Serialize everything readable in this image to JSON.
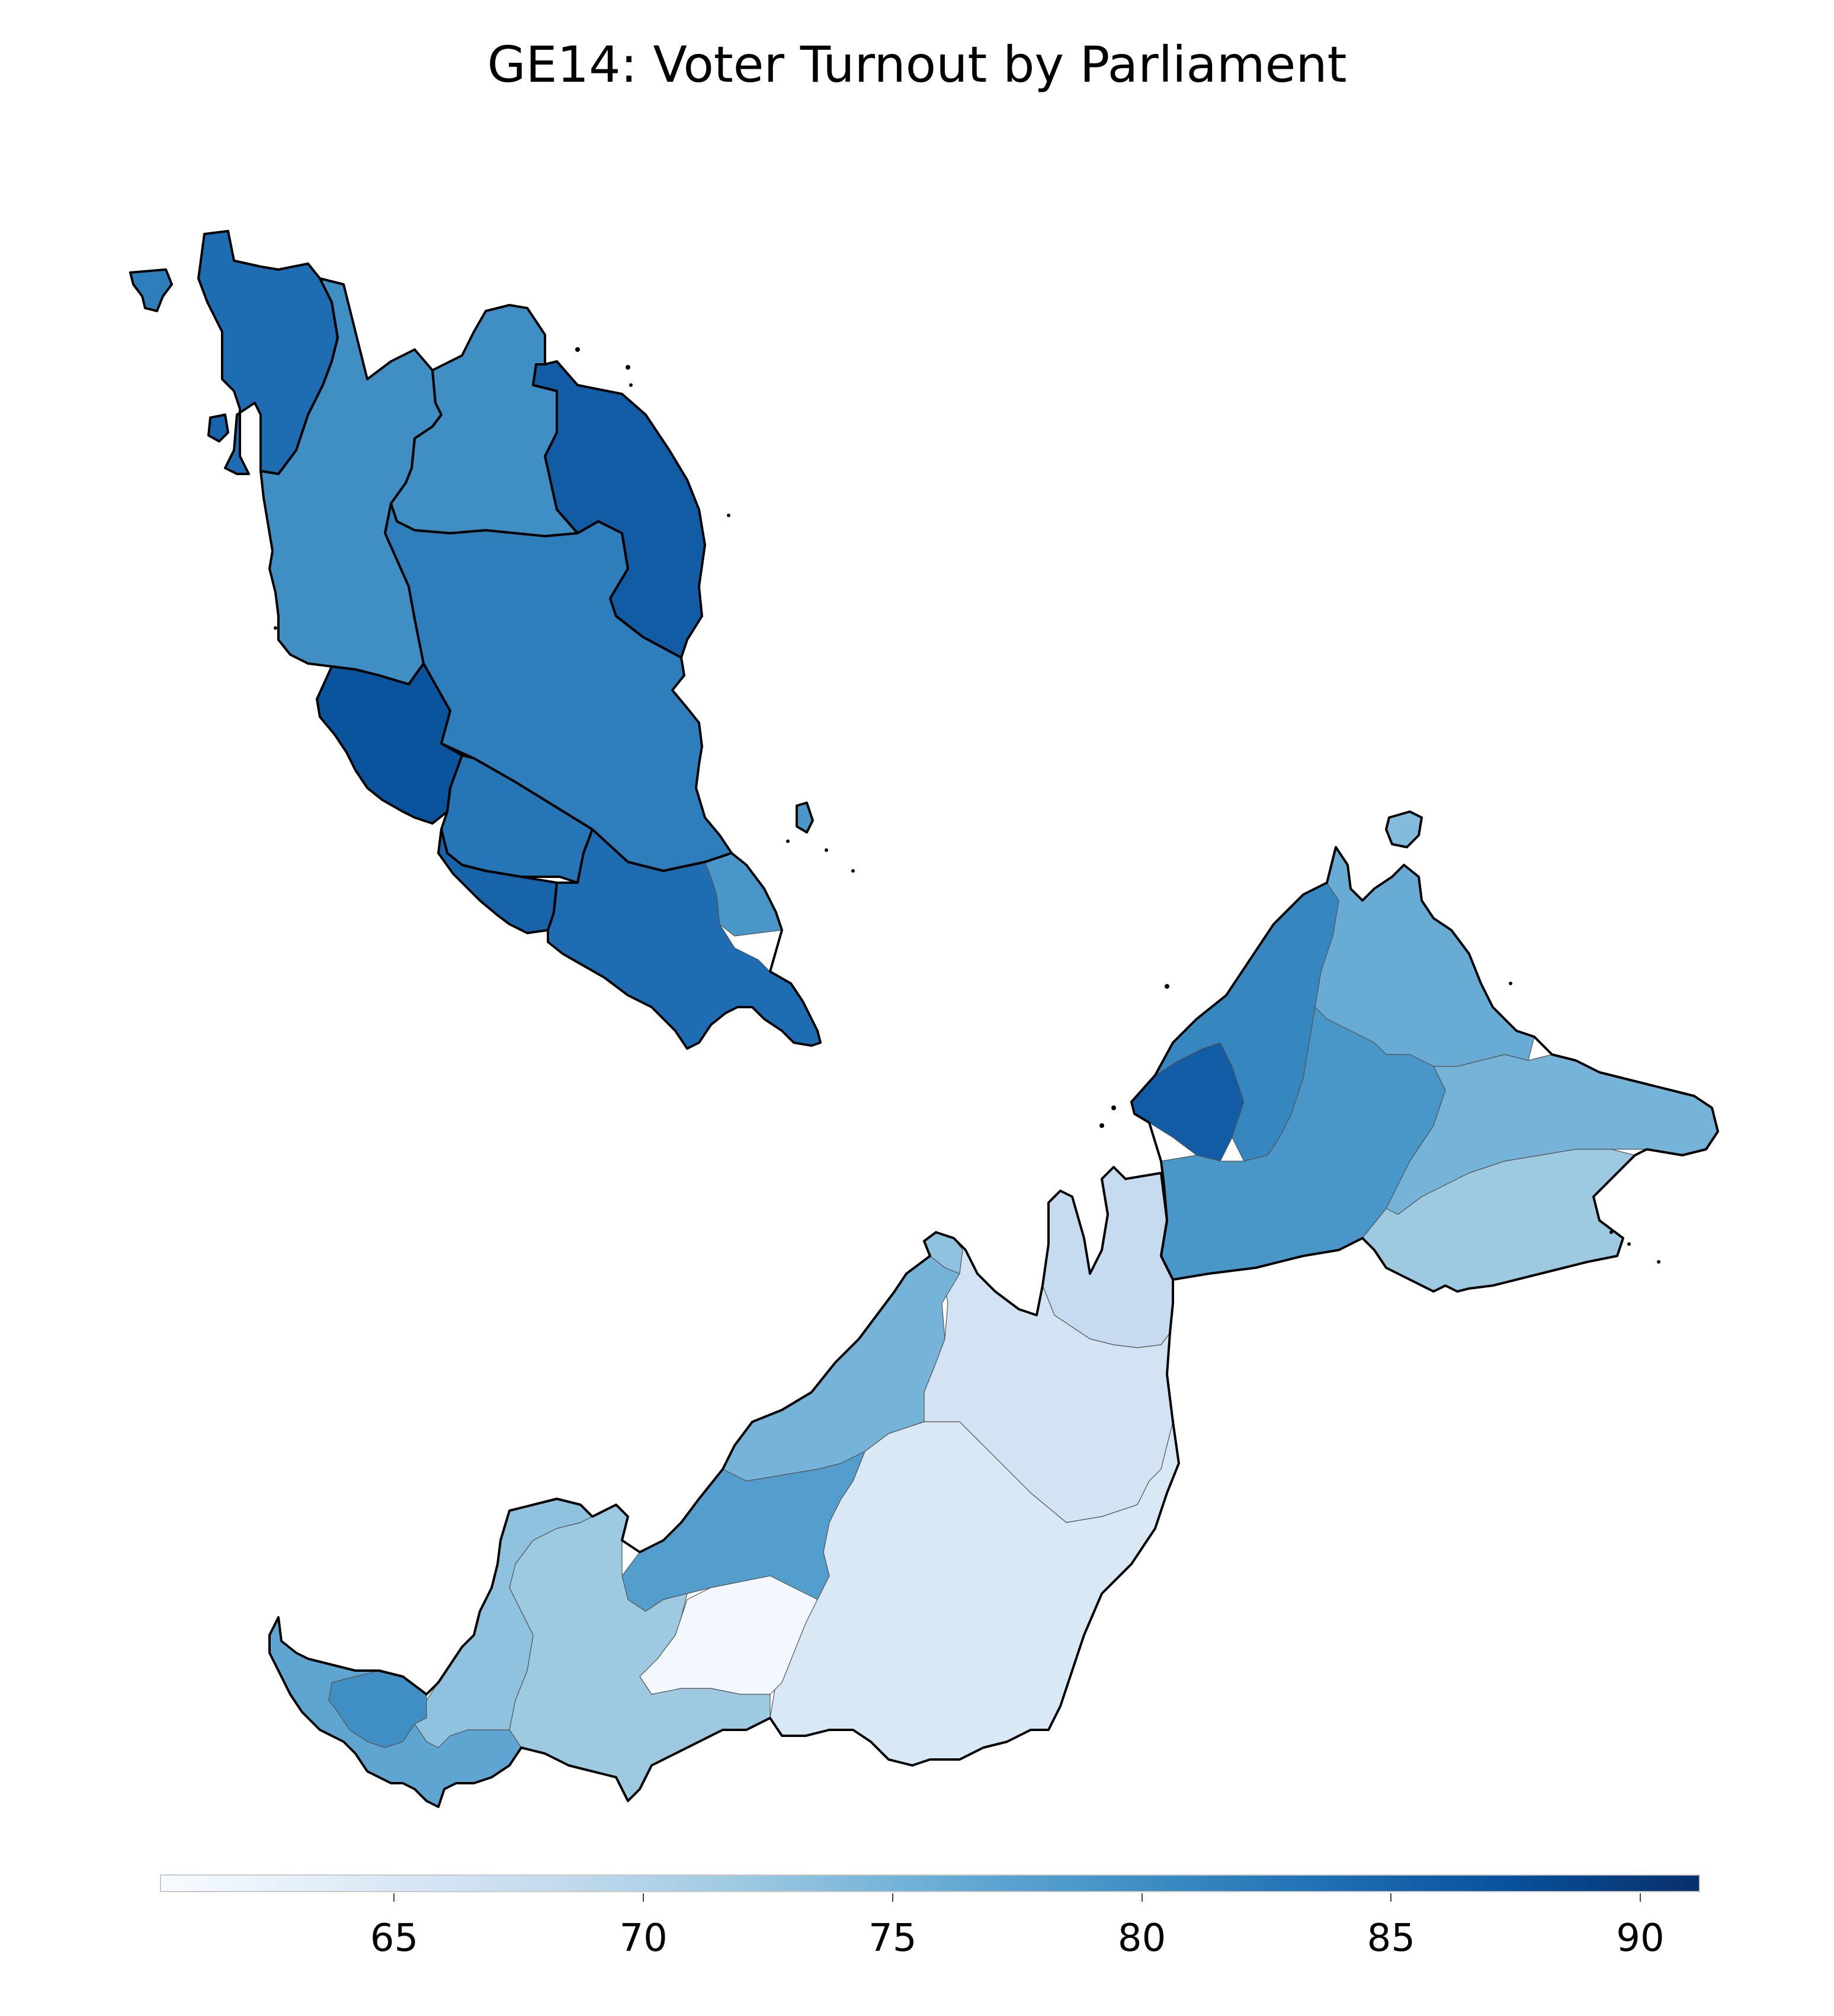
{
  "title": "GE14: Voter Turnout by Parliament",
  "colorbar": {
    "min": 60.3,
    "max": 91.2,
    "ticks": [
      65,
      70,
      75,
      80,
      85,
      90
    ],
    "tick_labels": [
      "65",
      "70",
      "75",
      "80",
      "85",
      "90"
    ],
    "colormap": "Blues",
    "stops": [
      "#f7fbff",
      "#deebf7",
      "#c6dbef",
      "#9ecae1",
      "#6baed6",
      "#4292c6",
      "#2171b5",
      "#08519c",
      "#08306b"
    ]
  },
  "regions": [
    {
      "id": "perlis-kedah",
      "turnout": 84
    },
    {
      "id": "langkawi",
      "turnout": 82
    },
    {
      "id": "penang",
      "turnout": 85
    },
    {
      "id": "kelantan",
      "turnout": 80
    },
    {
      "id": "terengganu",
      "turnout": 86
    },
    {
      "id": "perak",
      "turnout": 80
    },
    {
      "id": "pahang",
      "turnout": 82
    },
    {
      "id": "selangor",
      "turnout": 87
    },
    {
      "id": "negeri-sembilan",
      "turnout": 83
    },
    {
      "id": "melaka",
      "turnout": 85
    },
    {
      "id": "johor",
      "turnout": 84
    },
    {
      "id": "johor-east",
      "turnout": 79
    },
    {
      "id": "tioman",
      "turnout": 79
    },
    {
      "id": "sabah-west",
      "turnout": 81
    },
    {
      "id": "sabah-kk",
      "turnout": 86
    },
    {
      "id": "sabah-north",
      "turnout": 76
    },
    {
      "id": "sabah-interior",
      "turnout": 79
    },
    {
      "id": "sabah-east",
      "turnout": 75
    },
    {
      "id": "sabah-southeast",
      "turnout": 72
    },
    {
      "id": "banggi",
      "turnout": 74
    },
    {
      "id": "sarawak-west",
      "turnout": 77
    },
    {
      "id": "kuching",
      "turnout": 80
    },
    {
      "id": "sarawak-samarahan",
      "turnout": 73
    },
    {
      "id": "sarawak-central",
      "turnout": 72
    },
    {
      "id": "sarawak-coast",
      "turnout": 75
    },
    {
      "id": "sarawak-rajang",
      "turnout": 78
    },
    {
      "id": "sarawak-south",
      "turnout": 61
    },
    {
      "id": "sarawak-interior",
      "turnout": 65
    },
    {
      "id": "sarawak-northeast",
      "turnout": 66
    },
    {
      "id": "limbang",
      "turnout": 68
    },
    {
      "id": "miri-tip",
      "turnout": 73
    }
  ]
}
